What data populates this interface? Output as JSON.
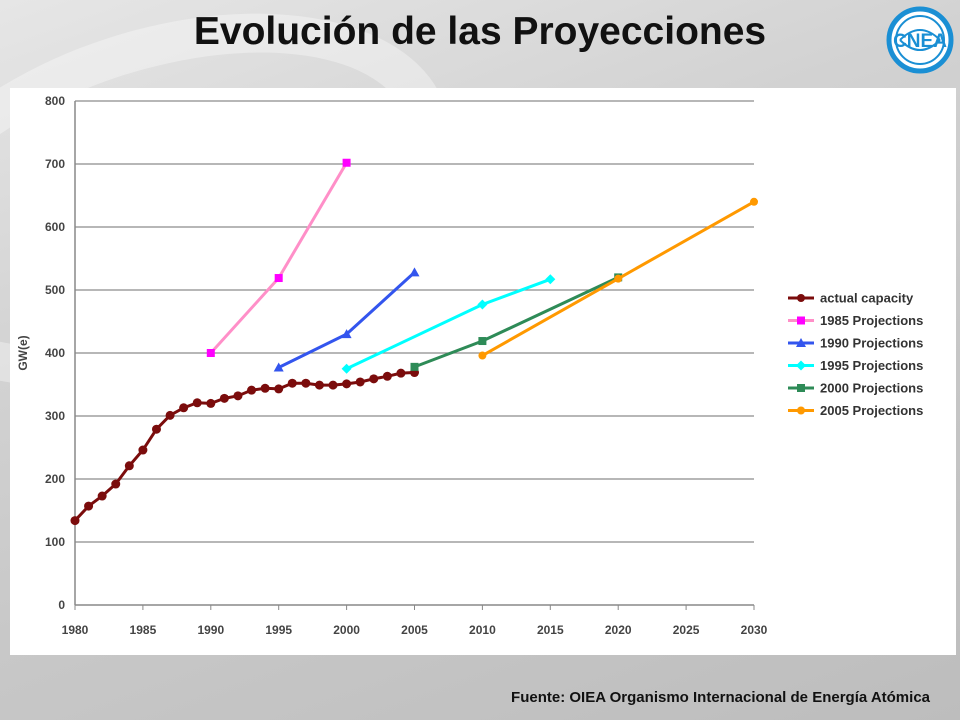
{
  "slide": {
    "title": "Evolución de las Proyecciones",
    "source": "Fuente: OIEA Organismo Internacional de Energía Atómica",
    "logo_text": "CNEA",
    "logo_color": "#1a8fd4"
  },
  "chart_data": {
    "type": "line",
    "title": "",
    "xlabel": "",
    "ylabel": "GW(e)",
    "xlim": [
      1980,
      2030
    ],
    "ylim": [
      0,
      800
    ],
    "xticks": [
      1980,
      1985,
      1990,
      1995,
      2000,
      2005,
      2010,
      2015,
      2020,
      2025,
      2030
    ],
    "yticks": [
      0,
      100,
      200,
      300,
      400,
      500,
      600,
      700,
      800
    ],
    "grid": "horizontal",
    "legend": "right",
    "series": [
      {
        "name": "actual capacity",
        "color": "#7b0c0c",
        "marker": "circle",
        "x": [
          1980,
          1981,
          1982,
          1983,
          1984,
          1985,
          1986,
          1987,
          1988,
          1989,
          1990,
          1991,
          1992,
          1993,
          1994,
          1995,
          1996,
          1997,
          1998,
          1999,
          2000,
          2001,
          2002,
          2003,
          2004,
          2005
        ],
        "y": [
          134,
          157,
          173,
          192,
          221,
          246,
          279,
          301,
          313,
          321,
          320,
          328,
          332,
          341,
          344,
          343,
          352,
          352,
          349,
          349,
          351,
          354,
          359,
          363,
          368,
          369
        ]
      },
      {
        "name": "1985 Projections",
        "color": "#ff8fc8",
        "marker_color": "#ff00ff",
        "marker": "square",
        "x": [
          1990,
          1995,
          2000
        ],
        "y": [
          400,
          519,
          702
        ]
      },
      {
        "name": "1990 Projections",
        "color": "#3355ee",
        "marker_color": "#3355ee",
        "marker": "triangle",
        "x": [
          1995,
          2000,
          2005
        ],
        "y": [
          377,
          430,
          528
        ]
      },
      {
        "name": "1995 Projections",
        "color": "#00ffff",
        "marker_color": "#00ffff",
        "marker": "diamond",
        "x": [
          2000,
          2010,
          2015
        ],
        "y": [
          375,
          477,
          517
        ]
      },
      {
        "name": "2000 Projections",
        "color": "#2e8b57",
        "marker_color": "#2e8b57",
        "marker": "square",
        "x": [
          2005,
          2010,
          2020
        ],
        "y": [
          378,
          419,
          520
        ]
      },
      {
        "name": "2005 Projections",
        "color": "#ff9900",
        "marker_color": "#ff9900",
        "marker": "circle",
        "x": [
          2010,
          2020,
          2030
        ],
        "y": [
          396,
          518,
          640
        ]
      }
    ]
  }
}
